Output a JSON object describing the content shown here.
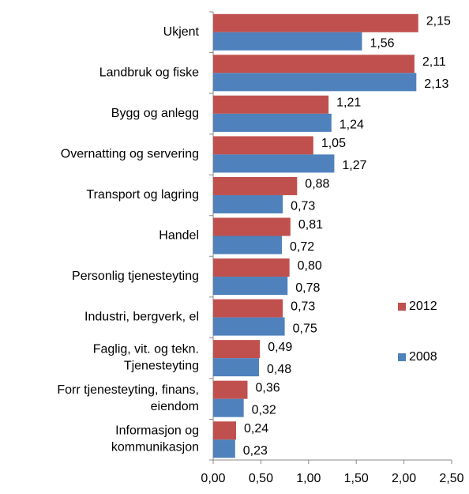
{
  "chart_data": {
    "type": "bar",
    "orientation": "horizontal",
    "categories": [
      [
        "Ukjent"
      ],
      [
        "Landbruk og fiske"
      ],
      [
        "Bygg og anlegg"
      ],
      [
        "Overnatting og servering"
      ],
      [
        "Transport og lagring"
      ],
      [
        "Handel"
      ],
      [
        "Personlig tjenesteyting"
      ],
      [
        "Industri, bergverk, el"
      ],
      [
        "Faglig, vit. og tekn.",
        "Tjenesteyting"
      ],
      [
        "Forr tjenesteyting, finans,",
        "eiendom"
      ],
      [
        "Informasjon og",
        "kommunikasjon"
      ]
    ],
    "series": [
      {
        "name": "2012",
        "color": "#c0504d",
        "values": [
          2.15,
          2.11,
          1.21,
          1.05,
          0.88,
          0.81,
          0.8,
          0.73,
          0.49,
          0.36,
          0.24
        ],
        "value_labels": [
          "2,15",
          "2,11",
          "1,21",
          "1,05",
          "0,88",
          "0,81",
          "0,80",
          "0,73",
          "0,49",
          "0,36",
          "0,24"
        ]
      },
      {
        "name": "2008",
        "color": "#4f81bd",
        "values": [
          1.56,
          2.13,
          1.24,
          1.27,
          0.73,
          0.72,
          0.78,
          0.75,
          0.48,
          0.32,
          0.23
        ],
        "value_labels": [
          "1,56",
          "2,13",
          "1,24",
          "1,27",
          "0,73",
          "0,72",
          "0,78",
          "0,75",
          "0,48",
          "0,32",
          "0,23"
        ]
      }
    ],
    "xlim": [
      0,
      2.5
    ],
    "xticks": [
      {
        "value": 0,
        "label": "0,00"
      },
      {
        "value": 0.5,
        "label": "0,50"
      },
      {
        "value": 1,
        "label": "1,00"
      },
      {
        "value": 1.5,
        "label": "1,50"
      },
      {
        "value": 2,
        "label": "2,00"
      },
      {
        "value": 2.5,
        "label": "2,50"
      }
    ],
    "legend": "right"
  }
}
